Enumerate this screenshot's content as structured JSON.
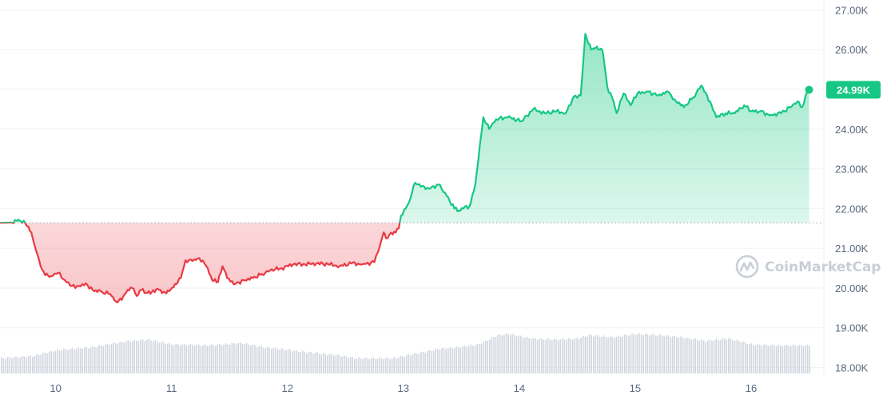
{
  "chart_data": {
    "type": "line",
    "title": "",
    "xlabel": "",
    "ylabel": "",
    "x_ticks": [
      "10",
      "11",
      "12",
      "13",
      "14",
      "15",
      "16"
    ],
    "x_range": [
      9.52,
      16.6
    ],
    "y_ticks": [
      "18.00K",
      "19.00K",
      "20.00K",
      "21.00K",
      "22.00K",
      "23.00K",
      "24.00K",
      "25.00K",
      "26.00K",
      "27.00K"
    ],
    "ylim": [
      17.85,
      27.25
    ],
    "baseline": 21.64,
    "last_value": 24.99,
    "last_label": "24.99K",
    "colors": {
      "up": "#16c784",
      "down": "#ea3943",
      "grid": "#eff2f5",
      "volume": "#d1d6df",
      "text": "#58667e"
    },
    "grid": true,
    "watermark": "CoinMarketCap",
    "series": [
      {
        "points": [
          [
            9.52,
            21.64
          ],
          [
            9.62,
            21.65
          ],
          [
            9.68,
            21.72
          ],
          [
            9.74,
            21.62
          ],
          [
            9.79,
            21.4
          ],
          [
            9.83,
            20.95
          ],
          [
            9.87,
            20.55
          ],
          [
            9.91,
            20.32
          ],
          [
            9.96,
            20.3
          ],
          [
            10.02,
            20.38
          ],
          [
            10.08,
            20.2
          ],
          [
            10.14,
            20.05
          ],
          [
            10.2,
            20.05
          ],
          [
            10.26,
            20.12
          ],
          [
            10.32,
            19.95
          ],
          [
            10.4,
            19.9
          ],
          [
            10.47,
            19.85
          ],
          [
            10.52,
            19.66
          ],
          [
            10.57,
            19.7
          ],
          [
            10.62,
            19.95
          ],
          [
            10.66,
            20.0
          ],
          [
            10.7,
            19.8
          ],
          [
            10.74,
            19.95
          ],
          [
            10.78,
            19.88
          ],
          [
            10.83,
            19.9
          ],
          [
            10.88,
            19.98
          ],
          [
            10.93,
            19.9
          ],
          [
            10.98,
            19.92
          ],
          [
            11.03,
            20.1
          ],
          [
            11.08,
            20.25
          ],
          [
            11.12,
            20.7
          ],
          [
            11.18,
            20.68
          ],
          [
            11.24,
            20.75
          ],
          [
            11.3,
            20.55
          ],
          [
            11.35,
            20.2
          ],
          [
            11.4,
            20.15
          ],
          [
            11.44,
            20.55
          ],
          [
            11.48,
            20.25
          ],
          [
            11.55,
            20.1
          ],
          [
            11.62,
            20.2
          ],
          [
            11.7,
            20.25
          ],
          [
            11.78,
            20.35
          ],
          [
            11.85,
            20.45
          ],
          [
            11.95,
            20.5
          ],
          [
            12.05,
            20.6
          ],
          [
            12.15,
            20.6
          ],
          [
            12.25,
            20.62
          ],
          [
            12.35,
            20.6
          ],
          [
            12.45,
            20.55
          ],
          [
            12.55,
            20.62
          ],
          [
            12.65,
            20.6
          ],
          [
            12.75,
            20.65
          ],
          [
            12.78,
            20.9
          ],
          [
            12.83,
            21.4
          ],
          [
            12.85,
            21.25
          ],
          [
            12.88,
            21.35
          ],
          [
            12.92,
            21.42
          ],
          [
            12.96,
            21.5
          ],
          [
            12.98,
            21.82
          ],
          [
            13.02,
            22.0
          ],
          [
            13.06,
            22.25
          ],
          [
            13.1,
            22.65
          ],
          [
            13.15,
            22.55
          ],
          [
            13.22,
            22.5
          ],
          [
            13.3,
            22.6
          ],
          [
            13.36,
            22.4
          ],
          [
            13.44,
            22.0
          ],
          [
            13.48,
            21.95
          ],
          [
            13.53,
            22.05
          ],
          [
            13.57,
            22.05
          ],
          [
            13.62,
            22.6
          ],
          [
            13.66,
            23.6
          ],
          [
            13.69,
            24.3
          ],
          [
            13.74,
            24.0
          ],
          [
            13.8,
            24.25
          ],
          [
            13.9,
            24.3
          ],
          [
            14.02,
            24.2
          ],
          [
            14.12,
            24.5
          ],
          [
            14.22,
            24.4
          ],
          [
            14.32,
            24.45
          ],
          [
            14.4,
            24.4
          ],
          [
            14.47,
            24.82
          ],
          [
            14.53,
            24.85
          ],
          [
            14.57,
            26.4
          ],
          [
            14.62,
            26.0
          ],
          [
            14.67,
            26.08
          ],
          [
            14.72,
            25.95
          ],
          [
            14.76,
            25.05
          ],
          [
            14.8,
            24.8
          ],
          [
            14.84,
            24.4
          ],
          [
            14.9,
            24.9
          ],
          [
            14.96,
            24.6
          ],
          [
            15.02,
            24.9
          ],
          [
            15.1,
            24.95
          ],
          [
            15.2,
            24.85
          ],
          [
            15.28,
            24.95
          ],
          [
            15.34,
            24.75
          ],
          [
            15.42,
            24.55
          ],
          [
            15.5,
            24.8
          ],
          [
            15.57,
            25.1
          ],
          [
            15.62,
            24.85
          ],
          [
            15.7,
            24.3
          ],
          [
            15.78,
            24.4
          ],
          [
            15.86,
            24.4
          ],
          [
            15.94,
            24.6
          ],
          [
            16.0,
            24.45
          ],
          [
            16.08,
            24.45
          ],
          [
            16.16,
            24.35
          ],
          [
            16.26,
            24.4
          ],
          [
            16.33,
            24.55
          ],
          [
            16.4,
            24.7
          ],
          [
            16.44,
            24.55
          ],
          [
            16.47,
            24.85
          ],
          [
            16.5,
            24.99
          ]
        ]
      }
    ],
    "volume": {
      "points": [
        [
          9.52,
          0.26
        ],
        [
          9.8,
          0.3
        ],
        [
          10.0,
          0.4
        ],
        [
          10.3,
          0.45
        ],
        [
          10.6,
          0.55
        ],
        [
          10.8,
          0.58
        ],
        [
          11.0,
          0.5
        ],
        [
          11.3,
          0.48
        ],
        [
          11.6,
          0.52
        ],
        [
          11.8,
          0.45
        ],
        [
          12.1,
          0.38
        ],
        [
          12.4,
          0.32
        ],
        [
          12.6,
          0.26
        ],
        [
          12.9,
          0.26
        ],
        [
          13.1,
          0.34
        ],
        [
          13.3,
          0.42
        ],
        [
          13.5,
          0.46
        ],
        [
          13.65,
          0.5
        ],
        [
          13.8,
          0.65
        ],
        [
          13.9,
          0.68
        ],
        [
          14.1,
          0.6
        ],
        [
          14.3,
          0.58
        ],
        [
          14.5,
          0.6
        ],
        [
          14.6,
          0.66
        ],
        [
          14.8,
          0.62
        ],
        [
          15.0,
          0.68
        ],
        [
          15.2,
          0.66
        ],
        [
          15.4,
          0.62
        ],
        [
          15.6,
          0.56
        ],
        [
          15.8,
          0.6
        ],
        [
          16.0,
          0.5
        ],
        [
          16.2,
          0.48
        ],
        [
          16.5,
          0.48
        ]
      ]
    }
  }
}
